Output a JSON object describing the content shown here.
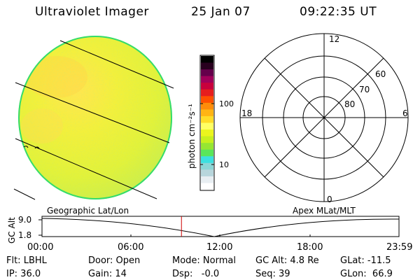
{
  "header": {
    "title": "Ultraviolet Imager",
    "date": "25 Jan 07",
    "time": "09:22:35 UT"
  },
  "colorbar": {
    "label": "photon cm⁻²s⁻¹",
    "tick_labels": [
      "100",
      "10"
    ],
    "colors": [
      "#ffffff",
      "#e8eef2",
      "#b8d6dc",
      "#8cd6d6",
      "#3ce0e0",
      "#5ae65a",
      "#96e632",
      "#c8f01e",
      "#ebf51e",
      "#ffff64",
      "#ffdc28",
      "#ffb414",
      "#ff8c0a",
      "#ff5000",
      "#e61e1e",
      "#c8003c",
      "#a0005a",
      "#64004b",
      "#28001e",
      "#000000"
    ]
  },
  "polar_plot": {
    "labels": [
      "12",
      "18",
      "6",
      "0",
      "60",
      "70",
      "80"
    ]
  },
  "timeline": {
    "ylabel": "GC Alt",
    "left_label": "Geographic Lat/Lon",
    "right_label": "Apex MLat/MLT",
    "y_ticks": [
      "9.0",
      "1.8"
    ],
    "x_ticks": [
      "00:00",
      "06:00",
      "12:00",
      "18:00",
      "23:59"
    ],
    "current_time_marker_hours": 9.376,
    "marker_color": "#cc0000"
  },
  "footer": {
    "col1": [
      "Flt: LBHL",
      "IP: 36.0"
    ],
    "col2": [
      "Door: Open",
      "Gain: 14"
    ],
    "col3": [
      "Mode: Normal",
      "Dsp:   -0.0"
    ],
    "col4": [
      "GC Alt: 4.8 Re",
      "Seq: 39"
    ],
    "col5": [
      "GLat: -11.5",
      "GLon:  66.9"
    ]
  }
}
